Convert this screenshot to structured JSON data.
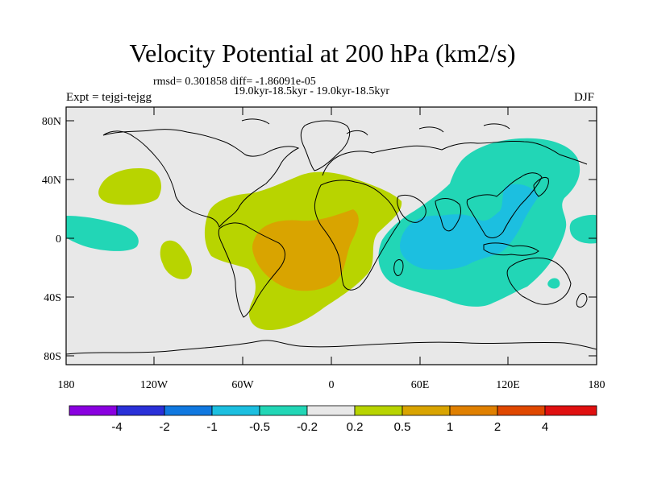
{
  "title": "Velocity Potential at 200 hPa (km2/s)",
  "stats_line": "rmsd= 0.301858 diff= -1.86091e-05",
  "period_line": "19.0kyr-18.5kyr - 19.0kyr-18.5kyr",
  "experiment": "Expt = tejgi-tejgg",
  "season": "DJF",
  "colors": {
    "background_land_ocean": "#e8e8e8",
    "coastline": "#000000",
    "cyan": "#22d6b6",
    "blue": "#1cbfe0",
    "yellow_green": "#b8d400",
    "orange": "#d9a400"
  },
  "lat_labels": [
    "80N",
    "40N",
    "0",
    "40S",
    "80S"
  ],
  "lon_labels": [
    "180",
    "120W",
    "60W",
    "0",
    "60E",
    "120E",
    "180"
  ],
  "colorbar": {
    "colors": [
      "#8a00e0",
      "#2a30d8",
      "#1078e0",
      "#1cbfe0",
      "#22d6b6",
      "#e8e8e8",
      "#b8d400",
      "#d9a400",
      "#e08000",
      "#e04800",
      "#e01010"
    ],
    "labels": [
      "-4",
      "-2",
      "-1",
      "-0.5",
      "-0.2",
      "0.2",
      "0.5",
      "1",
      "2",
      "4"
    ]
  }
}
